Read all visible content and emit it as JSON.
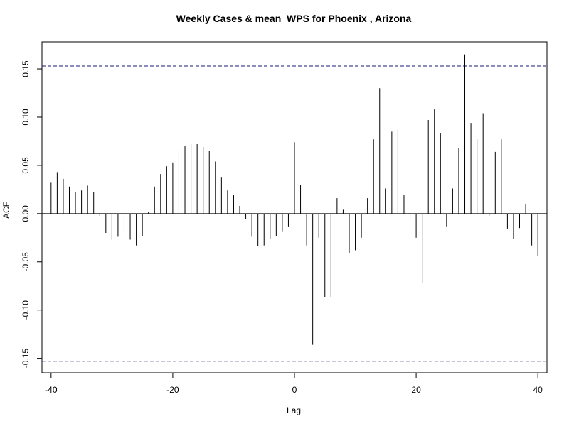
{
  "chart_data": {
    "type": "bar",
    "title": "Weekly Cases & mean_WPS for Phoenix , Arizona",
    "xlabel": "Lag",
    "ylabel": "ACF",
    "xlim": [
      -41.5,
      41.5
    ],
    "ylim": [
      -0.165,
      0.178
    ],
    "x_ticks": [
      -40,
      -20,
      0,
      20,
      40
    ],
    "x_tick_labels": [
      "-40",
      "-20",
      "0",
      "20",
      "40"
    ],
    "y_ticks": [
      -0.15,
      -0.1,
      -0.05,
      0.0,
      0.05,
      0.1,
      0.15
    ],
    "y_tick_labels": [
      "-0.15",
      "-0.10",
      "-0.05",
      "0.00",
      "0.05",
      "0.10",
      "0.15"
    ],
    "confidence_band": [
      -0.153,
      0.153
    ],
    "zero_line": 0,
    "x": [
      -40,
      -39,
      -38,
      -37,
      -36,
      -35,
      -34,
      -33,
      -32,
      -31,
      -30,
      -29,
      -28,
      -27,
      -26,
      -25,
      -24,
      -23,
      -22,
      -21,
      -20,
      -19,
      -18,
      -17,
      -16,
      -15,
      -14,
      -13,
      -12,
      -11,
      -10,
      -9,
      -8,
      -7,
      -6,
      -5,
      -4,
      -3,
      -2,
      -1,
      0,
      1,
      2,
      3,
      4,
      5,
      6,
      7,
      8,
      9,
      10,
      11,
      12,
      13,
      14,
      15,
      16,
      17,
      18,
      19,
      20,
      21,
      22,
      23,
      24,
      25,
      26,
      27,
      28,
      29,
      30,
      31,
      32,
      33,
      34,
      35,
      36,
      37,
      38,
      39,
      40
    ],
    "values": [
      0.032,
      0.043,
      0.036,
      0.028,
      0.022,
      0.024,
      0.029,
      0.022,
      -0.002,
      -0.02,
      -0.027,
      -0.024,
      -0.019,
      -0.027,
      -0.033,
      -0.023,
      0.002,
      0.028,
      0.041,
      0.049,
      0.053,
      0.066,
      0.07,
      0.072,
      0.072,
      0.069,
      0.065,
      0.054,
      0.038,
      0.024,
      0.019,
      0.008,
      -0.006,
      -0.024,
      -0.034,
      -0.033,
      -0.026,
      -0.023,
      -0.019,
      -0.014,
      0.074,
      0.03,
      -0.033,
      -0.136,
      -0.025,
      -0.087,
      -0.087,
      0.016,
      0.004,
      -0.041,
      -0.038,
      -0.025,
      0.016,
      0.077,
      0.13,
      0.026,
      0.085,
      0.087,
      0.019,
      -0.005,
      -0.025,
      -0.072,
      0.097,
      0.108,
      0.083,
      -0.014,
      0.026,
      0.068,
      0.165,
      0.094,
      0.077,
      0.104,
      -0.002,
      0.064,
      0.077,
      -0.016,
      -0.026,
      -0.015,
      0.01,
      -0.033,
      -0.044
    ],
    "line_color": "#000000",
    "band_color": "#1a1a7a",
    "grid": false
  }
}
